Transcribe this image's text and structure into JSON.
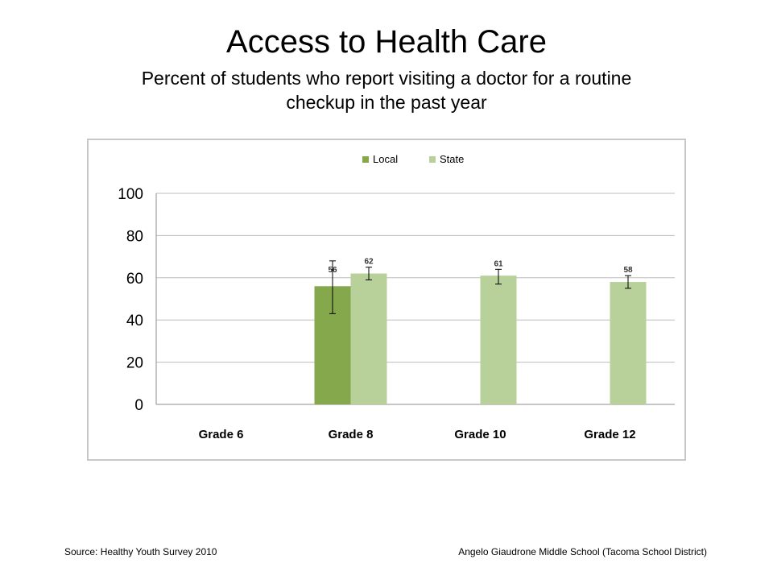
{
  "header": {
    "title": "Access to Health Care",
    "subtitle": "Percent of students who report visiting a doctor for a routine checkup in the past year"
  },
  "footer": {
    "source": "Source: Healthy Youth Survey 2010",
    "school": "Angelo Giaudrone Middle School (Tacoma School District)"
  },
  "chart_data": {
    "type": "bar",
    "title": "",
    "xlabel": "",
    "ylabel": "",
    "categories": [
      "Grade 6",
      "Grade 8",
      "Grade 10",
      "Grade 12"
    ],
    "ylim": [
      0,
      100
    ],
    "yticks": [
      "0",
      "20",
      "40",
      "60",
      "80",
      "100"
    ],
    "grid": true,
    "legend_position": "top-center",
    "series": [
      {
        "name": "Local",
        "color": "#86a84c",
        "values": [
          null,
          56,
          null,
          null
        ],
        "labels": [
          "",
          "56",
          "",
          ""
        ],
        "error_low": [
          null,
          43,
          null,
          null
        ],
        "error_high": [
          null,
          68,
          null,
          null
        ]
      },
      {
        "name": "State",
        "color": "#b8d09a",
        "values": [
          null,
          62,
          61,
          58
        ],
        "labels": [
          "",
          "62",
          "61",
          "58"
        ],
        "error_low": [
          null,
          59,
          57,
          55
        ],
        "error_high": [
          null,
          65,
          64,
          61
        ]
      }
    ]
  }
}
